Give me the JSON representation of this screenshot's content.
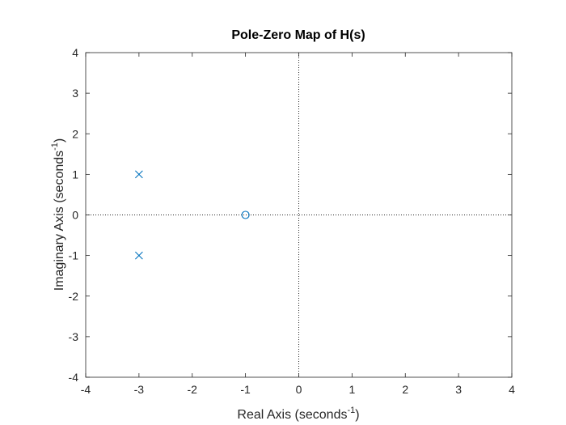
{
  "chart_data": {
    "type": "scatter",
    "title": "Pole-Zero Map of H(s)",
    "xlabel": {
      "text": "Real Axis (seconds",
      "superscript": "-1",
      "suffix": ")"
    },
    "ylabel": {
      "text": "Imaginary Axis (seconds",
      "superscript": "-1",
      "suffix": ")"
    },
    "xlim": [
      -4,
      4
    ],
    "ylim": [
      -4,
      4
    ],
    "xticks": [
      -4,
      -3,
      -2,
      -1,
      0,
      1,
      2,
      3,
      4
    ],
    "yticks": [
      -4,
      -3,
      -2,
      -1,
      0,
      1,
      2,
      3,
      4
    ],
    "xtick_labels": [
      "-4",
      "-3",
      "-2",
      "-1",
      "0",
      "1",
      "2",
      "3",
      "4"
    ],
    "ytick_labels": [
      "-4",
      "-3",
      "-2",
      "-1",
      "0",
      "1",
      "2",
      "3",
      "4"
    ],
    "grid": false,
    "reference_lines": [
      "x = 0 (dotted)",
      "y = 0 (dotted)"
    ],
    "series": [
      {
        "marker": "x",
        "points": [
          {
            "x": -3,
            "y": 1
          },
          {
            "x": -3,
            "y": -1
          }
        ]
      },
      {
        "marker": "o",
        "points": [
          {
            "x": -1,
            "y": 0
          }
        ]
      }
    ],
    "colors": {
      "marker": "#0072BD",
      "axes": "#262626",
      "title": "#000000",
      "reference_line": "#262626"
    }
  }
}
